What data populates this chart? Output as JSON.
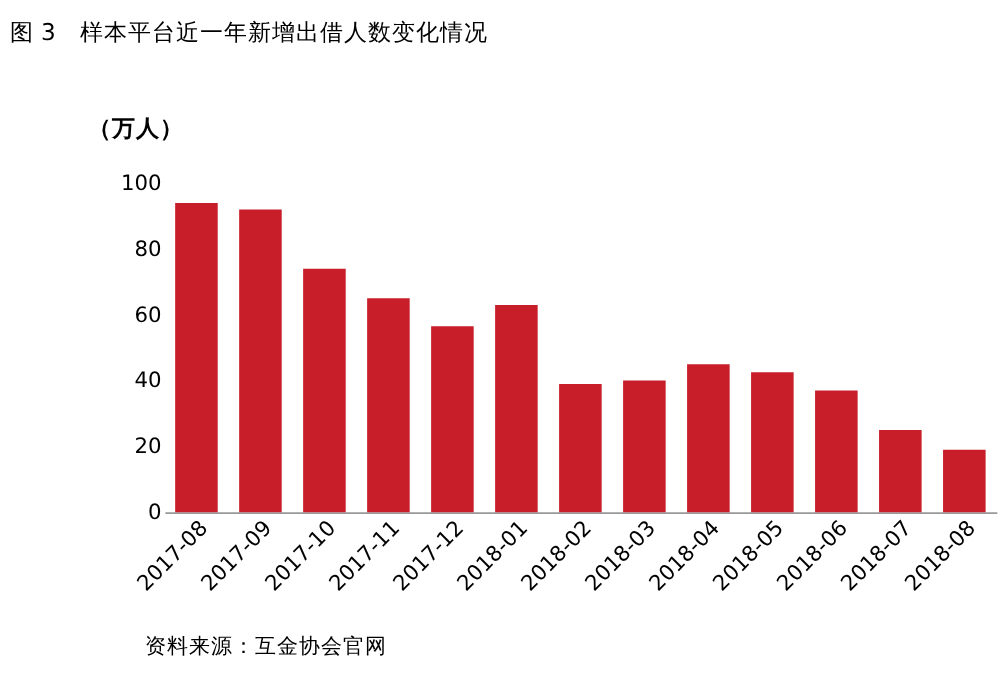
{
  "chart_data": {
    "type": "bar",
    "title": "图 3　样本平台近一年新增出借人数变化情况",
    "ylabel": "（万人）",
    "categories": [
      "2017-08",
      "2017-09",
      "2017-10",
      "2017-11",
      "2017-12",
      "2018-01",
      "2018-02",
      "2018-03",
      "2018-04",
      "2018-05",
      "2018-06",
      "2018-07",
      "2018-08"
    ],
    "values": [
      94,
      92,
      74,
      65,
      56.5,
      63,
      39,
      40,
      45,
      42.5,
      37,
      25,
      19
    ],
    "color": "#c81e2a",
    "ylim": [
      0,
      100
    ],
    "yticks": [
      0,
      20,
      40,
      60,
      80,
      100
    ],
    "grid": false,
    "annotations": [
      "资料来源：互金协会官网"
    ]
  }
}
